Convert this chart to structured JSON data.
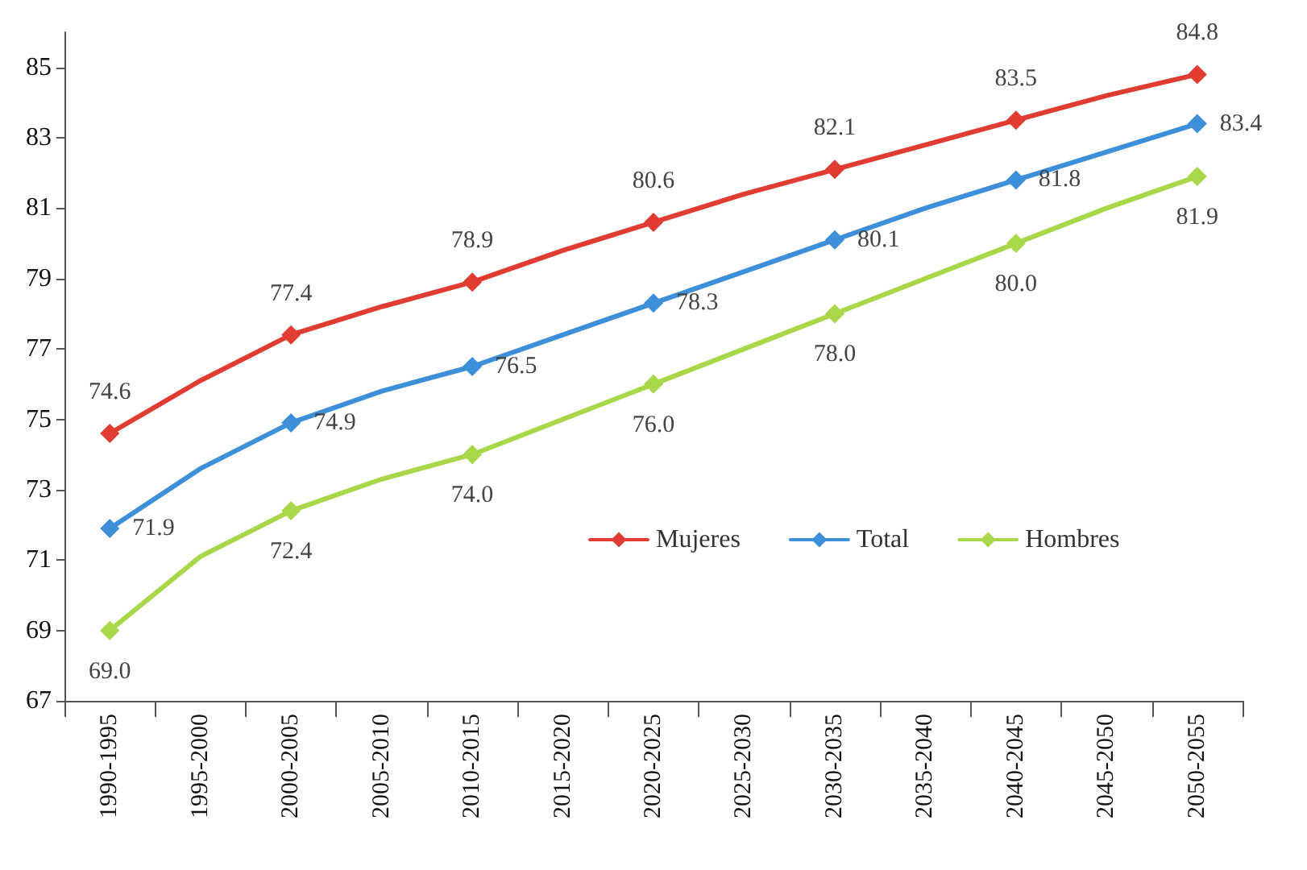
{
  "chart_data": {
    "type": "line",
    "categories": [
      "1990-1995",
      "1995-2000",
      "2000-2005",
      "2005-2010",
      "2010-2015",
      "2015-2020",
      "2020-2025",
      "2025-2030",
      "2030-2035",
      "2035-2040",
      "2040-2045",
      "2045-2050",
      "2050-2055"
    ],
    "series": [
      {
        "name": "Mujeres",
        "color": "#e03c31",
        "values": [
          74.6,
          76.1,
          77.4,
          78.2,
          78.9,
          79.8,
          80.6,
          81.4,
          82.1,
          82.8,
          83.5,
          84.2,
          84.8
        ],
        "value_labels": [
          "74.6",
          null,
          "77.4",
          null,
          "78.9",
          null,
          "80.6",
          null,
          "82.1",
          null,
          "83.5",
          null,
          "84.8"
        ]
      },
      {
        "name": "Total",
        "color": "#3d8fd9",
        "values": [
          71.9,
          73.6,
          74.9,
          75.8,
          76.5,
          77.4,
          78.3,
          79.2,
          80.1,
          81.0,
          81.8,
          82.6,
          83.4
        ],
        "value_labels": [
          "71.9",
          null,
          "74.9",
          null,
          "76.5",
          null,
          "78.3",
          null,
          "80.1",
          null,
          "81.8",
          null,
          "83.4"
        ]
      },
      {
        "name": "Hombres",
        "color": "#a8d84a",
        "values": [
          69.0,
          71.1,
          72.4,
          73.3,
          74.0,
          75.0,
          76.0,
          77.0,
          78.0,
          79.0,
          80.0,
          81.0,
          81.9
        ],
        "value_labels": [
          "69.0",
          null,
          "72.4",
          null,
          "74.0",
          null,
          "76.0",
          null,
          "78.0",
          null,
          "80.0",
          null,
          "81.9"
        ]
      }
    ],
    "ylim": [
      67,
      86
    ],
    "yticks": [
      67,
      69,
      71,
      73,
      75,
      77,
      79,
      81,
      83,
      85
    ],
    "grid": false,
    "legend": "right",
    "marker": "diamond",
    "line_style": "solid"
  }
}
